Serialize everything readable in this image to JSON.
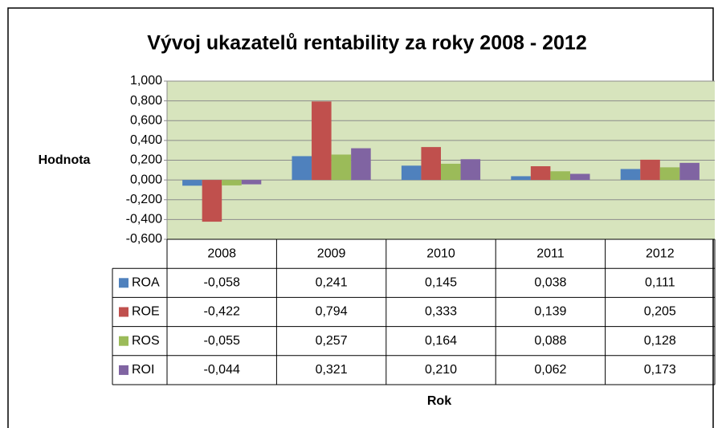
{
  "chart_data": {
    "type": "bar",
    "title": "Vývoj ukazatelů rentability za roky 2008 - 2012",
    "y_label": "Hodnota",
    "x_label": "Rok",
    "categories": [
      "2008",
      "2009",
      "2010",
      "2011",
      "2012"
    ],
    "series": [
      {
        "name": "ROA",
        "color": "#4f81bd",
        "values": [
          -0.058,
          0.241,
          0.145,
          0.038,
          0.111
        ],
        "value_labels": [
          "-0,058",
          "0,241",
          "0,145",
          "0,038",
          "0,111"
        ]
      },
      {
        "name": "ROE",
        "color": "#c0504d",
        "values": [
          -0.422,
          0.794,
          0.333,
          0.139,
          0.205
        ],
        "value_labels": [
          "-0,422",
          "0,794",
          "0,333",
          "0,139",
          "0,205"
        ]
      },
      {
        "name": "ROS",
        "color": "#9bbb59",
        "values": [
          -0.055,
          0.257,
          0.164,
          0.088,
          0.128
        ],
        "value_labels": [
          "-0,055",
          "0,257",
          "0,164",
          "0,088",
          "0,128"
        ]
      },
      {
        "name": "ROI",
        "color": "#8064a2",
        "values": [
          -0.044,
          0.321,
          0.21,
          0.062,
          0.173
        ],
        "value_labels": [
          "-0,044",
          "0,321",
          "0,210",
          "0,062",
          "0,173"
        ]
      }
    ],
    "ylim": [
      -0.6,
      1.0
    ],
    "yticks": [
      {
        "value": -0.6,
        "label": "-0,600"
      },
      {
        "value": -0.4,
        "label": "-0,400"
      },
      {
        "value": -0.2,
        "label": "-0,200"
      },
      {
        "value": 0,
        "label": "0,000"
      },
      {
        "value": 0.2,
        "label": "0,200"
      },
      {
        "value": 0.4,
        "label": "0,400"
      },
      {
        "value": 0.6,
        "label": "0,600"
      },
      {
        "value": 0.8,
        "label": "0,800"
      },
      {
        "value": 1.0,
        "label": "1,000"
      }
    ],
    "grid": true
  }
}
